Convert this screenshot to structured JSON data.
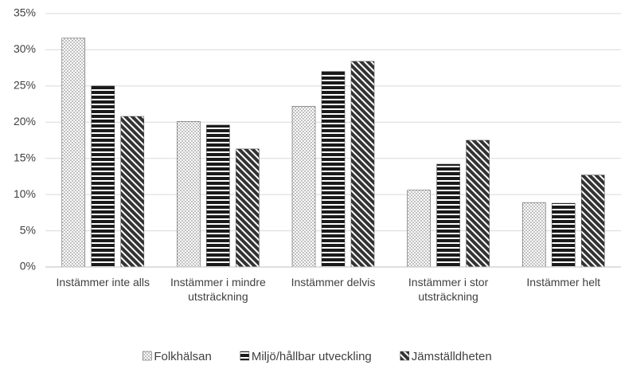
{
  "chart_data": {
    "type": "bar",
    "categories": [
      "Instämmer inte alls",
      "Instämmer i mindre utsträckning",
      "Instämmer delvis",
      "Instämmer i stor utsträckning",
      "Instämmer helt"
    ],
    "series": [
      {
        "name": "Folkhälsan",
        "color": "#bfbfbf",
        "values": [
          31.6,
          20.1,
          22.2,
          10.6,
          8.9
        ]
      },
      {
        "name": "Miljö/hållbar utveckling",
        "color": "#1a1a1a",
        "values": [
          25.0,
          19.6,
          27.0,
          14.2,
          8.8
        ]
      },
      {
        "name": "Jämställdheten",
        "color": "#333333",
        "values": [
          20.8,
          16.3,
          28.4,
          17.5,
          12.7
        ]
      }
    ],
    "ylim": [
      0,
      35
    ],
    "yticks": [
      {
        "value": 0,
        "label": "0%"
      },
      {
        "value": 5,
        "label": "5%"
      },
      {
        "value": 10,
        "label": "10%"
      },
      {
        "value": 15,
        "label": "15%"
      },
      {
        "value": 20,
        "label": "20%"
      },
      {
        "value": 25,
        "label": "25%"
      },
      {
        "value": 30,
        "label": "30%"
      },
      {
        "value": 35,
        "label": "35%"
      }
    ],
    "grid": true,
    "legend": "bottom"
  }
}
